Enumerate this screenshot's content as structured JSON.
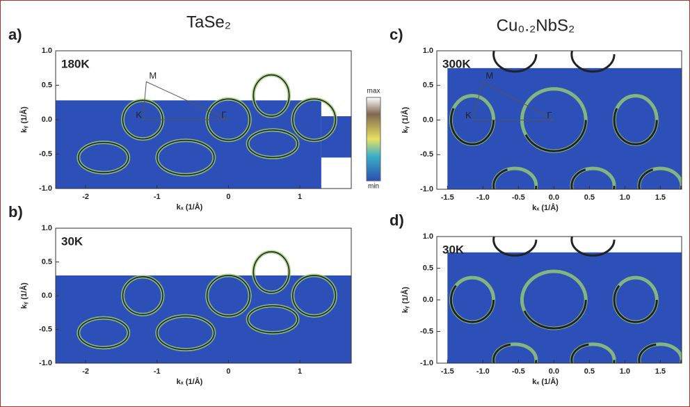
{
  "title_left": "TaSe₂",
  "title_right": "Cu₀.₂NbS₂",
  "chart_data": [
    {
      "type": "map",
      "panel": "a)",
      "temperature": "180K",
      "xlabel": "kₓ (1/Å)",
      "ylabel": "kᵧ (1/Å)",
      "xlim": [
        -2.42,
        1.72
      ],
      "ylim": [
        -1,
        1
      ],
      "xticks": [
        -2,
        -1,
        0,
        1
      ],
      "yticks": [
        {
          "value": -1,
          "label": "-1.0"
        },
        -0.5,
        {
          "value": 0,
          "label": "0.0"
        },
        0.5,
        {
          "value": 1,
          "label": "1.0"
        }
      ],
      "points": [
        "M",
        "K",
        "Γ"
      ],
      "colorbar": [
        "max",
        "min"
      ]
    },
    {
      "type": "map",
      "panel": "b)",
      "temperature": "30K",
      "xlabel": "kₓ (1/Å)",
      "ylabel": "kᵧ (1/Å)",
      "xlim": [
        -2.42,
        1.72
      ],
      "ylim": [
        -1,
        1
      ],
      "xticks": [
        -2,
        -1,
        0,
        1
      ],
      "yticks": [
        {
          "value": -1,
          "label": "-1.0"
        },
        -0.5,
        {
          "value": 0,
          "label": "0.0"
        },
        0.5,
        {
          "value": 1,
          "label": "1.0"
        }
      ]
    },
    {
      "type": "map",
      "panel": "c)",
      "temperature": "300K",
      "xlabel": "kₓ (1/Å)",
      "ylabel": "kᵧ (1/Å)",
      "xlim": [
        -1.65,
        1.8
      ],
      "ylim": [
        -1,
        1
      ],
      "xticks": [
        -1.5,
        {
          "value": -1,
          "label": "-1.0"
        },
        -0.5,
        {
          "value": 0,
          "label": "0.0"
        },
        0.5,
        {
          "value": 1,
          "label": "1.0"
        },
        1.5
      ],
      "yticks": [
        {
          "value": -1,
          "label": "-1.0"
        },
        -0.5,
        {
          "value": 0,
          "label": "0.0"
        },
        0.5,
        {
          "value": 1,
          "label": "1.0"
        }
      ],
      "points": [
        "M",
        "K",
        "Γ"
      ]
    },
    {
      "type": "map",
      "panel": "d)",
      "temperature": "30K",
      "xlabel": "kₓ (1/Å)",
      "ylabel": "kᵧ (1/Å)",
      "xlim": [
        -1.65,
        1.8
      ],
      "ylim": [
        -1,
        1
      ],
      "xticks": [
        -1.5,
        {
          "value": -1,
          "label": "-1.0"
        },
        -0.5,
        {
          "value": 0,
          "label": "0.0"
        },
        0.5,
        {
          "value": 1,
          "label": "1.0"
        },
        1.5
      ],
      "yticks": [
        {
          "value": -1,
          "label": "-1.0"
        },
        -0.5,
        {
          "value": 0,
          "label": "0.0"
        },
        0.5,
        {
          "value": 1,
          "label": "1.0"
        }
      ]
    }
  ]
}
